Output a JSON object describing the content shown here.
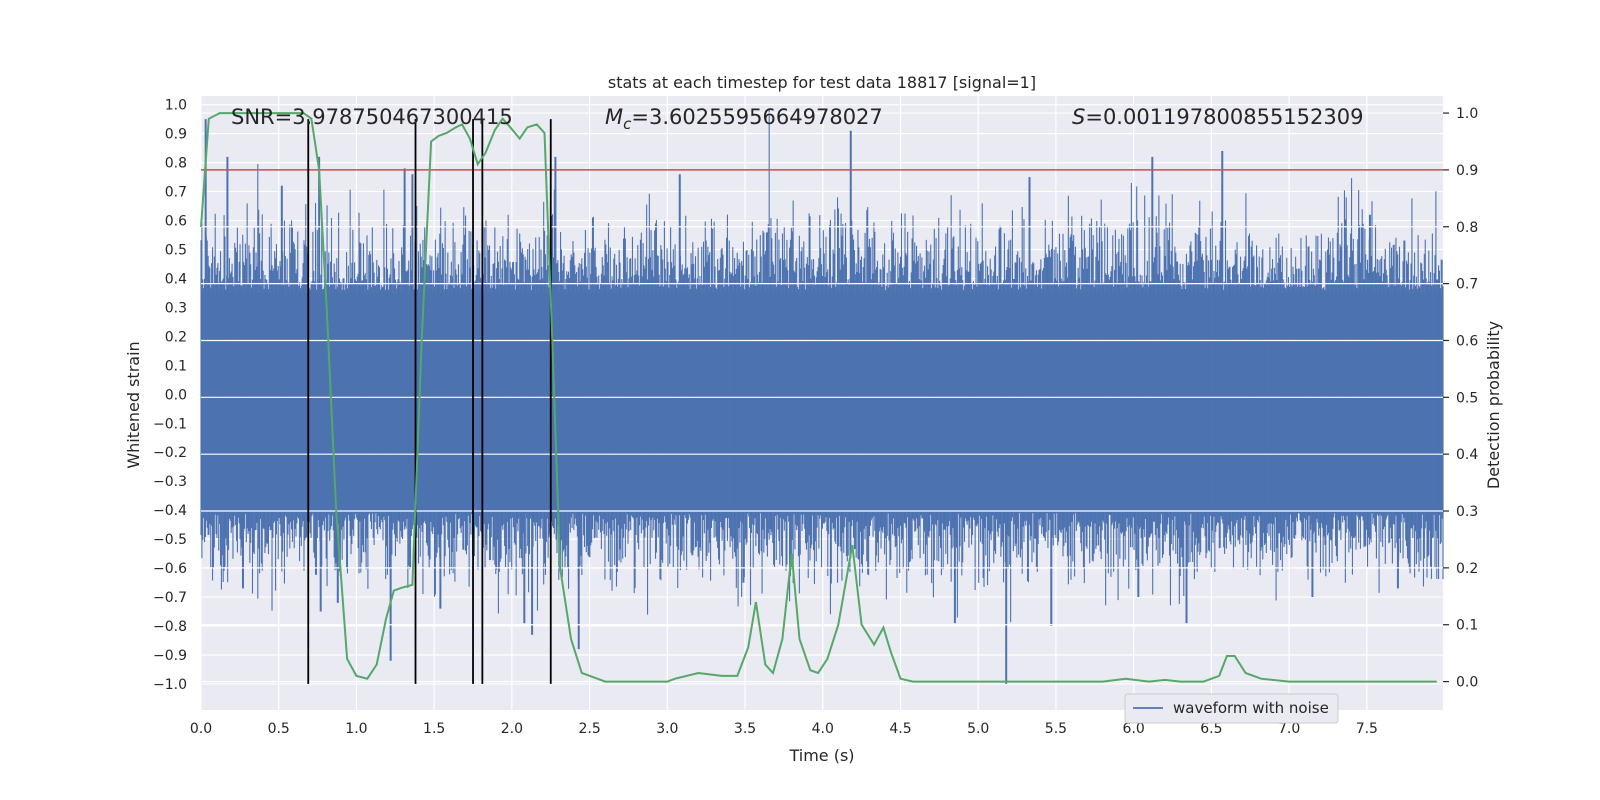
{
  "chart_data": {
    "type": "line",
    "title": "stats at each timestep for test data 18817 [signal=1]",
    "xlabel": "Time (s)",
    "ylabel_left": "Whitened strain",
    "ylabel_right": "Detection probability",
    "xlim": [
      0.0,
      7.99
    ],
    "ylim_left": [
      -1.09,
      1.03
    ],
    "ylim_right": [
      -0.05,
      1.03
    ],
    "x_ticks": [
      "0.0",
      "0.5",
      "1.0",
      "1.5",
      "2.0",
      "2.5",
      "3.0",
      "3.5",
      "4.0",
      "4.5",
      "5.0",
      "5.5",
      "6.0",
      "6.5",
      "7.0",
      "7.5"
    ],
    "x_tick_values": [
      0.0,
      0.5,
      1.0,
      1.5,
      2.0,
      2.5,
      3.0,
      3.5,
      4.0,
      4.5,
      5.0,
      5.5,
      6.0,
      6.5,
      7.0,
      7.5
    ],
    "y_left_ticks": [
      "1.0",
      "0.9",
      "0.8",
      "0.7",
      "0.6",
      "0.5",
      "0.4",
      "0.3",
      "0.2",
      "0.1",
      "0.0",
      "−0.0",
      "−0.1",
      "−0.2",
      "−0.3",
      "−0.4",
      "−0.5",
      "−0.6",
      "−0.7",
      "−0.8",
      "−0.9",
      "−1.0"
    ],
    "y_left_tick_values": [
      1.0,
      0.9,
      0.8,
      0.7,
      0.6,
      0.5,
      0.4,
      0.3,
      0.2,
      0.1,
      0.0,
      -0.0,
      -0.1,
      -0.2,
      -0.3,
      -0.4,
      -0.5,
      -0.6,
      -0.7,
      -0.8,
      -0.9,
      -1.0
    ],
    "y_right_ticks": [
      "1.0",
      "0.9",
      "0.8",
      "0.7",
      "0.6",
      "0.5",
      "0.4",
      "0.3",
      "0.2",
      "0.1",
      "0.0"
    ],
    "y_right_tick_values": [
      1.0,
      0.9,
      0.8,
      0.7,
      0.6,
      0.5,
      0.4,
      0.3,
      0.2,
      0.1,
      0.0
    ],
    "threshold": {
      "value": 0.9,
      "axis": "right",
      "color": "#c44e52"
    },
    "vertical_markers": [
      0.69,
      1.38,
      1.75,
      1.81,
      2.25
    ],
    "annotations": {
      "snr": "SNR=3.978750467300415",
      "mc_symbol": "M",
      "mc_sub": "c",
      "mc_value": "=3.6025595664978027",
      "s_symbol": "S",
      "s_value": "=0.001197800855152309"
    },
    "series": [
      {
        "name": "waveform with noise",
        "axis": "left",
        "color": "#4c72b0",
        "style": "dense noise, band ±0.40 with spikes",
        "spikes_pos": [
          [
            0.03,
            0.95
          ],
          [
            0.17,
            0.82
          ],
          [
            0.52,
            0.72
          ],
          [
            0.76,
            0.82
          ],
          [
            1.31,
            0.78
          ],
          [
            1.36,
            0.76
          ],
          [
            2.28,
            0.82
          ],
          [
            3.08,
            0.76
          ],
          [
            4.18,
            0.91
          ],
          [
            5.33,
            0.75
          ],
          [
            6.12,
            0.82
          ],
          [
            6.57,
            0.84
          ],
          [
            7.52,
            0.62
          ]
        ],
        "spikes_neg": [
          [
            0.27,
            -0.67
          ],
          [
            0.77,
            -0.75
          ],
          [
            0.88,
            -0.72
          ],
          [
            1.22,
            -0.92
          ],
          [
            1.54,
            -0.74
          ],
          [
            2.08,
            -0.79
          ],
          [
            2.13,
            -0.83
          ],
          [
            2.43,
            -0.88
          ],
          [
            3.49,
            -0.65
          ],
          [
            4.85,
            -0.79
          ],
          [
            5.18,
            -1.0
          ],
          [
            5.47,
            -0.8
          ],
          [
            6.03,
            -0.7
          ],
          [
            6.34,
            -0.79
          ],
          [
            7.15,
            -0.7
          ],
          [
            7.7,
            -0.67
          ]
        ]
      },
      {
        "name": "detection probability",
        "axis": "right",
        "color": "#55a868",
        "x": [
          0.0,
          0.05,
          0.12,
          0.3,
          0.5,
          0.6,
          0.66,
          0.71,
          0.76,
          0.81,
          0.87,
          0.94,
          1.0,
          1.07,
          1.13,
          1.19,
          1.24,
          1.29,
          1.36,
          1.42,
          1.48,
          1.53,
          1.58,
          1.64,
          1.68,
          1.73,
          1.78,
          1.83,
          1.89,
          1.94,
          1.99,
          2.05,
          2.1,
          2.16,
          2.21,
          2.26,
          2.31,
          2.38,
          2.45,
          2.55,
          2.6,
          2.75,
          3.0,
          3.05,
          3.2,
          3.35,
          3.45,
          3.52,
          3.57,
          3.63,
          3.68,
          3.74,
          3.8,
          3.85,
          3.92,
          3.97,
          4.03,
          4.1,
          4.19,
          4.25,
          4.33,
          4.39,
          4.44,
          4.5,
          4.58,
          4.7,
          4.85,
          5.0,
          5.2,
          5.4,
          5.6,
          5.8,
          5.95,
          6.1,
          6.2,
          6.3,
          6.45,
          6.55,
          6.6,
          6.65,
          6.72,
          6.82,
          7.0,
          7.2,
          7.5,
          7.95
        ],
        "y": [
          0.8,
          0.99,
          1.0,
          1.0,
          1.0,
          1.0,
          1.0,
          0.99,
          0.9,
          0.65,
          0.3,
          0.04,
          0.01,
          0.005,
          0.03,
          0.11,
          0.16,
          0.165,
          0.17,
          0.6,
          0.95,
          0.96,
          0.965,
          0.975,
          0.98,
          0.955,
          0.91,
          0.93,
          0.97,
          0.99,
          0.975,
          0.955,
          0.975,
          0.98,
          0.965,
          0.6,
          0.2,
          0.075,
          0.015,
          0.005,
          0.0,
          0.0,
          0.0,
          0.005,
          0.015,
          0.01,
          0.01,
          0.06,
          0.14,
          0.03,
          0.015,
          0.075,
          0.225,
          0.075,
          0.02,
          0.015,
          0.04,
          0.1,
          0.24,
          0.1,
          0.065,
          0.095,
          0.05,
          0.005,
          0.0,
          0.0,
          0.0,
          0.0,
          0.0,
          0.0,
          0.0,
          0.0,
          0.005,
          0.0,
          0.003,
          0.0,
          0.0,
          0.01,
          0.045,
          0.045,
          0.015,
          0.005,
          0.0,
          0.0,
          0.0,
          0.0
        ]
      }
    ],
    "legend": {
      "placement": "lower-right",
      "entries": [
        "waveform with noise"
      ]
    }
  }
}
